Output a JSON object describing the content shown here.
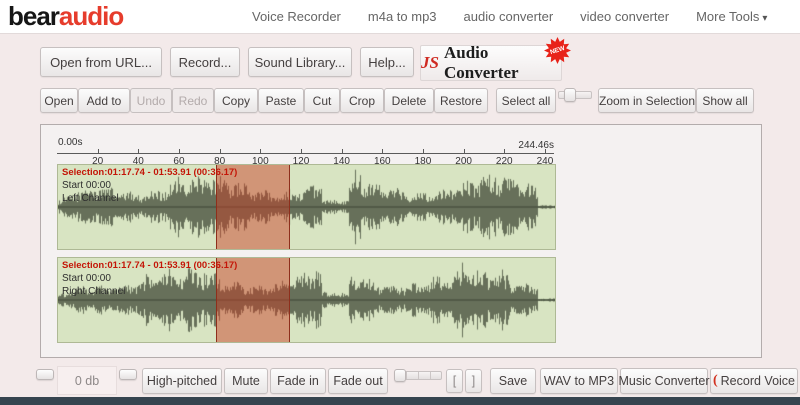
{
  "header": {
    "logo_part1": "bear",
    "logo_part2": "audio",
    "nav_items": [
      "Voice Recorder",
      "m4a to mp3",
      "audio converter",
      "video converter",
      "More Tools"
    ]
  },
  "icons": {
    "dropdown_caret": "▾",
    "record_voice_glyph": "("
  },
  "actions_row": {
    "open_from_url": "Open from URL...",
    "record": "Record...",
    "sound_library": "Sound Library...",
    "help": "Help...",
    "promo_js": "JS",
    "promo_rest": "Audio Converter",
    "promo_badge": "NEW"
  },
  "toolbar": {
    "open": "Open",
    "add_to": "Add to",
    "undo": "Undo",
    "redo": "Redo",
    "copy": "Copy",
    "paste": "Paste",
    "cut": "Cut",
    "crop": "Crop",
    "delete": "Delete",
    "restore": "Restore",
    "select_all": "Select all",
    "zoom_in_selection": "Zoom in Selection",
    "show_all": "Show all"
  },
  "editor": {
    "ruler": {
      "start_label": "0.00s",
      "end_label": "244.46s",
      "tick_seconds": [
        20,
        40,
        60,
        80,
        100,
        120,
        140,
        160,
        180,
        200,
        220,
        240
      ],
      "total_seconds": 244.46
    },
    "selection": {
      "label": "Selection:01:17.74 - 01:53.91 (00:36.17)",
      "start_seconds": 77.74,
      "end_seconds": 113.91
    },
    "tracks": [
      {
        "start_label": "Start 00:00",
        "channel_label": "Left Channel"
      },
      {
        "start_label": "Start 00:00",
        "channel_label": "Right Channel"
      }
    ],
    "colors": {
      "track_bg": "#d8e4c2",
      "waveform": "#67705a",
      "axis": "#3d4435",
      "selection_fill": "rgba(200,62,38,0.48)",
      "selection_border": "#8e2f1c",
      "selection_text": "#c41507"
    }
  },
  "bottom_bar": {
    "volume_label": "0 db",
    "high_pitched": "High-pitched",
    "mute": "Mute",
    "fade_in": "Fade in",
    "fade_out": "Fade out",
    "bracket_left": "[",
    "bracket_right": "]",
    "save": "Save",
    "wav_to_mp3": "WAV to MP3",
    "music_converter": "Music Converter",
    "record_voice": "Record Voice"
  }
}
